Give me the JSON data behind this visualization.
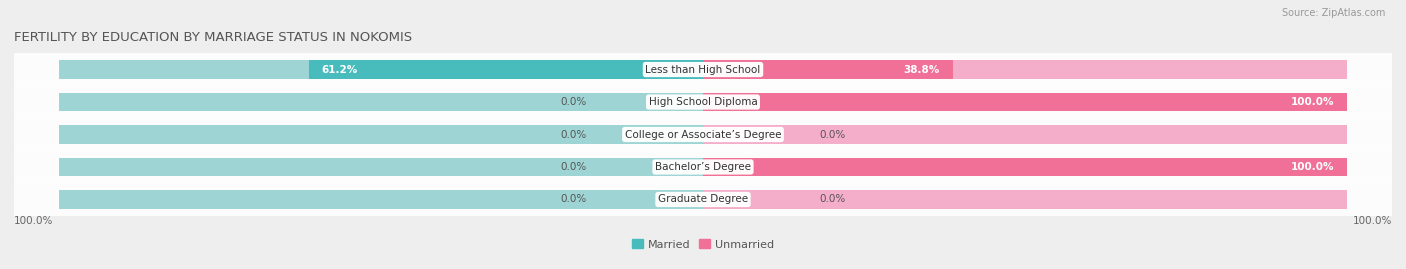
{
  "title": "FERTILITY BY EDUCATION BY MARRIAGE STATUS IN NOKOMIS",
  "source": "Source: ZipAtlas.com",
  "categories": [
    "Less than High School",
    "High School Diploma",
    "College or Associate’s Degree",
    "Bachelor’s Degree",
    "Graduate Degree"
  ],
  "married": [
    61.2,
    0.0,
    0.0,
    0.0,
    0.0
  ],
  "unmarried": [
    38.8,
    100.0,
    0.0,
    100.0,
    0.0
  ],
  "married_color": "#48BCBC",
  "unmarried_color": "#F07098",
  "married_light_color": "#9ED4D4",
  "unmarried_light_color": "#F5AECA",
  "bg_color": "#eeeeee",
  "title_fontsize": 9.5,
  "label_fontsize": 7.5,
  "tick_fontsize": 7.5,
  "legend_fontsize": 8,
  "bar_height": 0.58
}
